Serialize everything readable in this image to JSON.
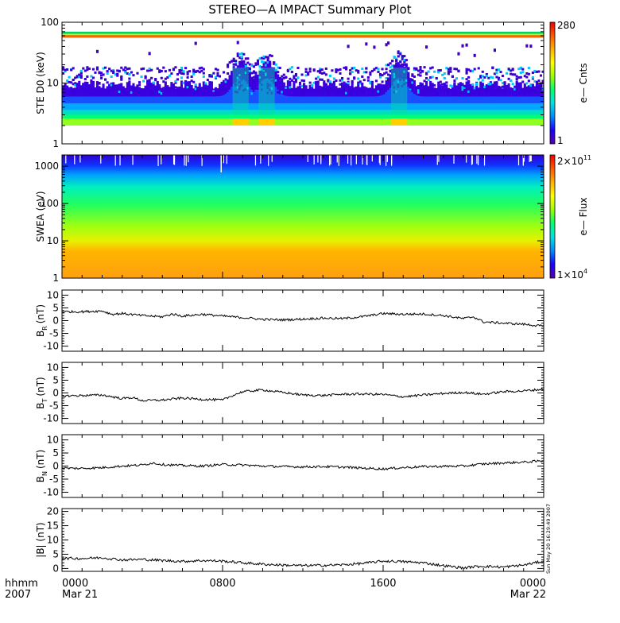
{
  "title": "STEREO—A IMPACT Summary Plot",
  "colors": {
    "background": "#ffffff",
    "axis": "#000000",
    "trace": "#000000"
  },
  "colorbar_gradient": [
    "#5a00a8",
    "#1800ff",
    "#0088ff",
    "#00e0e0",
    "#00ff70",
    "#9cff00",
    "#ffff00",
    "#ffb000",
    "#ff5a00",
    "#ee0000"
  ],
  "time_axis": {
    "corner_labels": [
      "hhmm",
      "2007"
    ],
    "ticks": [
      {
        "time": "0000",
        "date": "Mar 21",
        "hour": 0
      },
      {
        "time": "0800",
        "date": "",
        "hour": 8
      },
      {
        "time": "1600",
        "date": "",
        "hour": 16
      },
      {
        "time": "0000",
        "date": "Mar 22",
        "hour": 24
      }
    ],
    "range_hours": [
      0,
      24
    ]
  },
  "side_stamp": "Sun May 20 16:29:49 2007",
  "chart_data": [
    {
      "type": "heatmap",
      "id": "ste",
      "ylabel": "STE D0 (keV)",
      "yscale": "log",
      "ylim": [
        1,
        100
      ],
      "yticks": [
        {
          "value": 1,
          "label": "1"
        },
        {
          "value": 10,
          "label": "10"
        },
        {
          "value": 100,
          "label": "100"
        }
      ],
      "colorbar": {
        "label": "e— Cnts",
        "min": "1",
        "max": "280"
      },
      "features": {
        "bands_keV": [
          {
            "from": 56,
            "to": 70,
            "color": "#00d070"
          },
          {
            "from": 2.0,
            "to": 2.6,
            "color": "#90ff20"
          }
        ],
        "bursts_hours": [
          8.9,
          10.2,
          16.8
        ]
      }
    },
    {
      "type": "heatmap",
      "id": "swea",
      "ylabel": "SWEA (eV)",
      "yscale": "log",
      "ylim": [
        1,
        2000
      ],
      "yticks": [
        {
          "value": 1,
          "label": "1"
        },
        {
          "value": 10,
          "label": "10"
        },
        {
          "value": 100,
          "label": "100"
        },
        {
          "value": 1000,
          "label": "1000"
        }
      ],
      "colorbar": {
        "label": "e— Flux",
        "min_mantissa": "1×10",
        "min_exp": "4",
        "max_mantissa": "2×10",
        "max_exp": "11"
      }
    },
    {
      "type": "line",
      "id": "br",
      "ylabel": "B",
      "ylabel_sub": "R",
      "ylabel_unit": "(nT)",
      "ylim": [
        -12,
        12
      ],
      "yticks": [
        -10,
        -5,
        0,
        5,
        10
      ],
      "x": [
        0,
        1,
        2,
        2.5,
        3,
        4,
        5,
        5.5,
        6,
        7,
        8,
        9,
        10,
        11,
        12,
        13,
        14,
        15,
        16,
        17,
        18,
        19,
        20,
        20.5,
        21,
        22,
        23,
        24
      ],
      "y": [
        3.5,
        3.5,
        3.8,
        2.5,
        2.8,
        2.0,
        1.5,
        2.6,
        1.8,
        2.5,
        1.8,
        1.2,
        0.5,
        0.3,
        0.6,
        1.0,
        0.8,
        1.6,
        2.8,
        2.5,
        2.6,
        2.0,
        0.8,
        1.5,
        -0.5,
        -1.0,
        -1.4,
        -2.2
      ]
    },
    {
      "type": "line",
      "id": "bt",
      "ylabel": "B",
      "ylabel_sub": "T",
      "ylabel_unit": "(nT)",
      "ylim": [
        -12,
        12
      ],
      "yticks": [
        -10,
        -5,
        0,
        5,
        10
      ],
      "x": [
        0,
        1,
        2,
        3,
        3.5,
        4,
        5,
        6,
        7,
        8,
        8.5,
        9,
        10,
        11,
        12,
        13,
        14,
        15,
        16,
        17,
        18,
        19,
        20,
        21,
        22,
        23,
        24
      ],
      "y": [
        -1.2,
        -1.0,
        -0.8,
        -2.2,
        -1.8,
        -3.0,
        -2.8,
        -2.0,
        -2.5,
        -2.8,
        -1.0,
        0.5,
        1.2,
        0.2,
        -0.8,
        -1.0,
        -0.5,
        -0.4,
        -0.6,
        -1.5,
        -0.8,
        -0.2,
        0.2,
        -0.5,
        0.5,
        0.8,
        1.5
      ]
    },
    {
      "type": "line",
      "id": "bn",
      "ylabel": "B",
      "ylabel_sub": "N",
      "ylabel_unit": "(nT)",
      "ylim": [
        -12,
        12
      ],
      "yticks": [
        -10,
        -5,
        0,
        5,
        10
      ],
      "x": [
        0,
        1,
        2,
        3,
        4,
        4.5,
        5,
        6,
        7,
        8,
        9,
        10,
        11,
        12,
        13,
        14,
        15,
        16,
        17,
        18,
        19,
        20,
        21,
        22,
        23,
        24
      ],
      "y": [
        -0.8,
        -0.9,
        -0.6,
        0.0,
        0.4,
        1.2,
        0.6,
        0.2,
        0.0,
        0.6,
        0.4,
        0.0,
        -0.2,
        -0.3,
        -0.2,
        -0.4,
        -0.8,
        -1.1,
        -0.6,
        -0.2,
        -0.1,
        0.0,
        0.8,
        1.2,
        1.5,
        2.0
      ]
    },
    {
      "type": "line",
      "id": "bmag",
      "ylabel": "|B| (nT)",
      "ylim": [
        -1,
        21
      ],
      "yticks": [
        0,
        5,
        10,
        15,
        20
      ],
      "x": [
        0,
        1,
        2,
        3,
        4,
        5,
        6,
        7,
        8,
        9,
        10,
        11,
        12,
        13,
        14,
        15,
        16,
        17,
        18,
        19,
        20,
        20.5,
        21,
        22,
        23,
        24
      ],
      "y": [
        3.6,
        3.5,
        3.8,
        3.0,
        3.2,
        2.8,
        2.5,
        2.8,
        2.6,
        2.0,
        1.5,
        1.2,
        1.0,
        1.1,
        1.3,
        1.8,
        2.6,
        2.4,
        2.0,
        1.0,
        0.2,
        0.6,
        0.8,
        0.5,
        1.2,
        2.6
      ]
    }
  ]
}
